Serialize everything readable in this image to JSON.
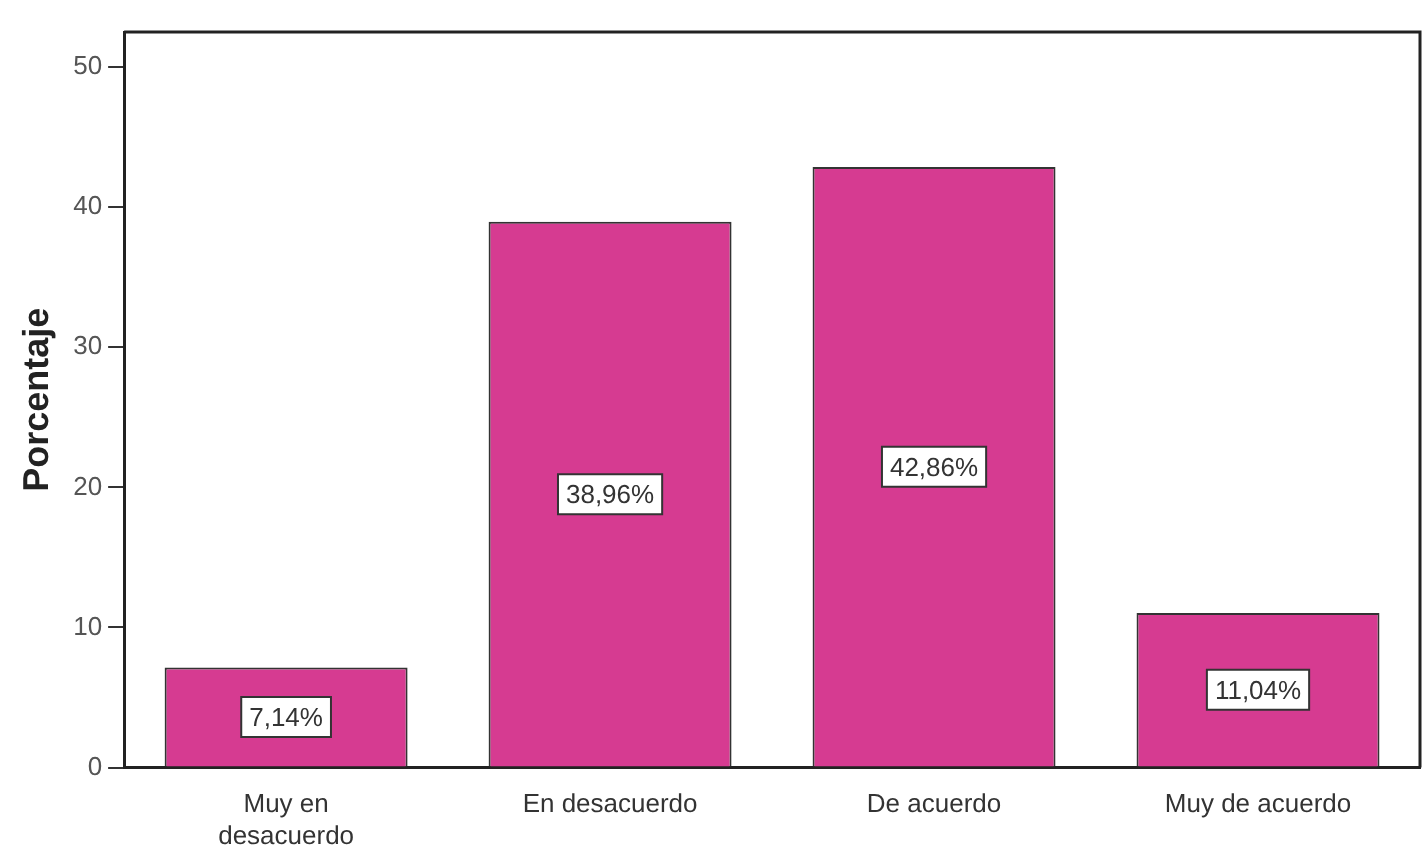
{
  "chart_data": {
    "type": "bar",
    "ylabel": "Porcentaje",
    "categories": [
      "Muy en\ndesacuerdo",
      "En desacuerdo",
      "De acuerdo",
      "Muy de acuerdo"
    ],
    "values": [
      7.14,
      38.96,
      42.86,
      11.04
    ],
    "value_labels": [
      "7,14%",
      "38,96%",
      "42,86%",
      "11,04%"
    ],
    "color": "#d63b91",
    "ylim": [
      0,
      52.5
    ],
    "yticks": [
      0,
      10,
      20,
      30,
      40,
      50
    ],
    "grid": false,
    "legend": false
  }
}
